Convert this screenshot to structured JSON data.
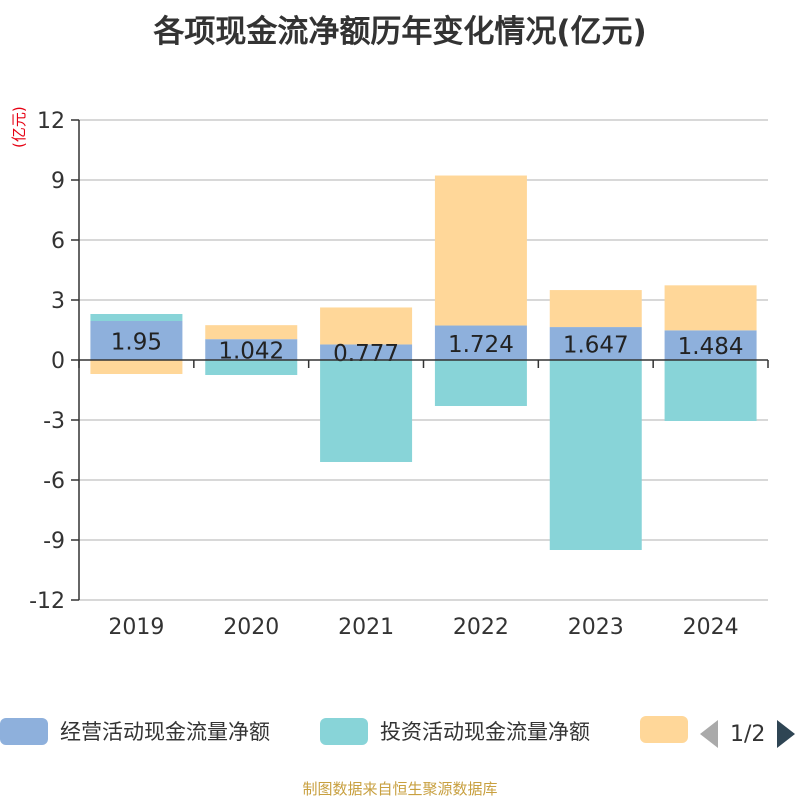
{
  "chart_data": {
    "type": "bar",
    "stacked": true,
    "title": "各项现金流净额历年变化情况(亿元)",
    "ylabel": "(亿元)",
    "categories": [
      "2019",
      "2020",
      "2021",
      "2022",
      "2023",
      "2024"
    ],
    "ylim": [
      -12,
      12
    ],
    "yticks": [
      12,
      9,
      6,
      3,
      0,
      -3,
      -6,
      -9,
      -12
    ],
    "series": [
      {
        "name": "经营活动现金流量净额",
        "color": "#8eb0dc",
        "values": [
          1.95,
          1.042,
          0.777,
          1.724,
          1.647,
          1.484
        ],
        "labels": [
          "1.95",
          "1.042",
          "0.777",
          "1.724",
          "1.647",
          "1.484"
        ]
      },
      {
        "name": "投资活动现金流量净额",
        "color": "#88d4d8",
        "values": [
          0.35,
          -0.75,
          -5.1,
          -2.3,
          -9.5,
          -3.05
        ]
      },
      {
        "name": "",
        "color": "#ffd799",
        "values": [
          -0.7,
          0.7,
          1.85,
          7.5,
          1.85,
          2.25
        ]
      }
    ]
  },
  "legend": {
    "items": [
      {
        "label": "经营活动现金流量净额",
        "color": "#8eb0dc"
      },
      {
        "label": "投资活动现金流量净额",
        "color": "#88d4d8"
      },
      {
        "label": "",
        "color": "#ffd799"
      }
    ],
    "page": "1/2"
  },
  "source": "制图数据来自恒生聚源数据库"
}
